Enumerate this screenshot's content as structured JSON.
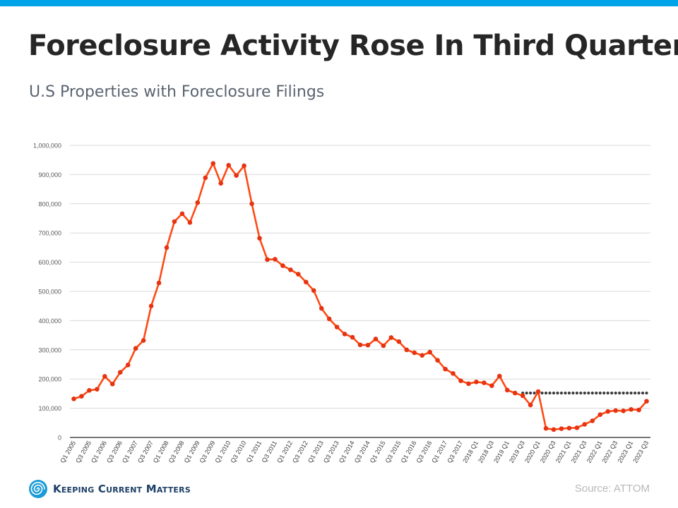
{
  "page": {
    "title": "Foreclosure Activity Rose In Third Quarter",
    "subtitle": "U.S Properties with Foreclosure Filings",
    "source": "Source: ATTOM",
    "brand_name": "Keeping Current Matters",
    "brand_icon": "spiral-logo-icon",
    "top_bar_color": "#00a3e8"
  },
  "chart_data": {
    "type": "line",
    "title": "",
    "xlabel": "",
    "ylabel": "",
    "ylim": [
      0,
      1000000
    ],
    "y_ticks": [
      0,
      100000,
      200000,
      300000,
      400000,
      500000,
      600000,
      700000,
      800000,
      900000,
      1000000
    ],
    "y_tick_labels": [
      "0",
      "100,000",
      "200,000",
      "300,000",
      "400,000",
      "500,000",
      "600,000",
      "700,000",
      "800,000",
      "900,000",
      "1,000,000"
    ],
    "grid": "horizontal",
    "legend": "none",
    "categories": [
      "Q1 2005",
      "Q2 2005",
      "Q3 2005",
      "Q4 2005",
      "Q1 2006",
      "Q2 2006",
      "Q3 2006",
      "Q4 2006",
      "Q1 2007",
      "Q2 2007",
      "Q3 2007",
      "Q4 2007",
      "Q1 2008",
      "Q2 2008",
      "Q3 2008",
      "Q4 2008",
      "Q1 2009",
      "Q2 2009",
      "Q3 2009",
      "Q4 2009",
      "Q1 2010",
      "Q2 2010",
      "Q3 2010",
      "Q4 2010",
      "Q1 2011",
      "Q2 2011",
      "Q3 2011",
      "Q4 2011",
      "Q1 2012",
      "Q2 2012",
      "Q3 2012",
      "Q4 2012",
      "Q1 2013",
      "Q2 2013",
      "Q3 2013",
      "Q4 2013",
      "Q1 2014",
      "Q2 2014",
      "Q3 2014",
      "Q4 2014",
      "Q1 2015",
      "Q2 2015",
      "Q3 2015",
      "Q4 2015",
      "Q1 2016",
      "Q2 2016",
      "Q3 2016",
      "Q4 2016",
      "Q1 2017",
      "Q2 2017",
      "Q3 2017",
      "Q4 2017",
      "2018 Q1",
      "2018 Q2",
      "2018 Q3",
      "2018 Q4",
      "2019 Q1",
      "2019 Q2",
      "2019 Q3",
      "2019 Q4",
      "2020 Q1",
      "2020 Q2",
      "2020 Q3",
      "2020 Q4",
      "2021 Q1",
      "2021 Q2",
      "2021 Q3",
      "2021 Q4",
      "2022 Q1",
      "2022 Q2",
      "2022 Q3",
      "2022 Q4",
      "2023 Q1",
      "2023 Q2",
      "2023 Q3"
    ],
    "x_tick_labels": [
      "Q1 2005",
      "",
      "Q3 2005",
      "",
      "Q1 2006",
      "",
      "Q3 2006",
      "",
      "Q1 2007",
      "",
      "Q3 2007",
      "",
      "Q1 2008",
      "",
      "Q3 2008",
      "",
      "Q1 2009",
      "",
      "Q3 2009",
      "",
      "Q1 2010",
      "",
      "Q3 2010",
      "",
      "Q1 2011",
      "",
      "Q3 2011",
      "",
      "Q1 2012",
      "",
      "Q3 2012",
      "",
      "Q1 2013",
      "",
      "Q3 2013",
      "",
      "Q1 2014",
      "",
      "Q3 2014",
      "",
      "Q1 2015",
      "",
      "Q3 2015",
      "",
      "Q1 2016",
      "",
      "Q3 2016",
      "",
      "Q1 2017",
      "",
      "Q3 2017",
      "",
      "2018 Q1",
      "",
      "2018 Q3",
      "",
      "2019 Q1",
      "",
      "2019 Q3",
      "",
      "2020 Q1",
      "",
      "2020 Q3",
      "",
      "2021 Q1",
      "",
      "2021 Q3",
      "",
      "2022 Q1",
      "",
      "2022 Q3",
      "",
      "2023 Q1",
      "",
      "2023 Q3"
    ],
    "series": [
      {
        "color": "#e63312",
        "line_color": "#ff4a14",
        "values": [
          132000,
          141000,
          161000,
          165000,
          209000,
          183000,
          223000,
          248000,
          305000,
          332000,
          450000,
          529000,
          650000,
          739000,
          766000,
          736000,
          804000,
          889000,
          938000,
          870000,
          932000,
          897000,
          930000,
          800000,
          682000,
          609000,
          610000,
          588000,
          574000,
          559000,
          532000,
          503000,
          442000,
          406000,
          378000,
          354000,
          343000,
          317000,
          316000,
          337000,
          314000,
          342000,
          328000,
          300000,
          290000,
          281000,
          292000,
          264000,
          234000,
          219000,
          194000,
          184000,
          190000,
          187000,
          177000,
          210000,
          162000,
          152000,
          143000,
          111000,
          157000,
          31000,
          27000,
          30000,
          32000,
          33000,
          45000,
          57000,
          78000,
          89000,
          92000,
          91000,
          96000,
          94000,
          124000
        ]
      },
      {
        "style": "dotted",
        "color": "#3a3a3a",
        "x_start": "2019 Q3",
        "x_end": "2023 Q3",
        "value": 152000
      }
    ]
  }
}
